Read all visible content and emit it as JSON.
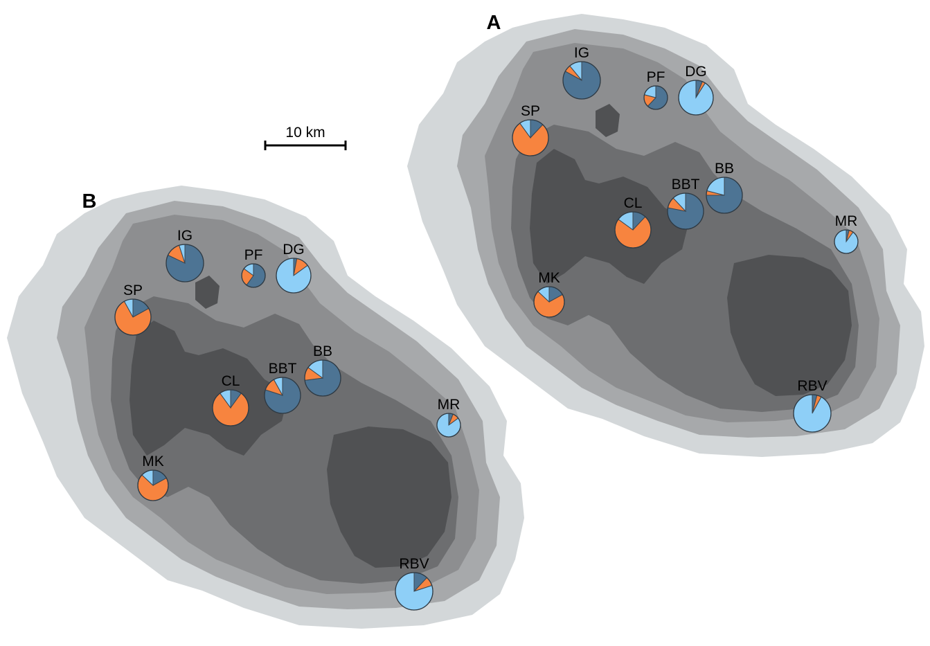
{
  "colors": {
    "outer": "#d3d7d9",
    "ring2": "#a7a9ab",
    "ring3": "#8d8e90",
    "ring4": "#6d6e70",
    "core": "#505153",
    "cat_dark": "#4d7494",
    "cat_orange": "#f7843f",
    "cat_light": "#8ecff7"
  },
  "scale_bar": {
    "label": "10 km"
  },
  "panels": [
    {
      "label": "A",
      "sites": [
        {
          "name": "IG",
          "fractions": [
            0.83,
            0.06,
            0.11
          ]
        },
        {
          "name": "PF",
          "fractions": [
            0.62,
            0.17,
            0.21
          ]
        },
        {
          "name": "DG",
          "fractions": [
            0.06,
            0.03,
            0.91
          ]
        },
        {
          "name": "SP",
          "fractions": [
            0.12,
            0.78,
            0.1
          ]
        },
        {
          "name": "BB",
          "fractions": [
            0.75,
            0.04,
            0.21
          ]
        },
        {
          "name": "BBT",
          "fractions": [
            0.78,
            0.1,
            0.12
          ]
        },
        {
          "name": "CL",
          "fractions": [
            0.12,
            0.73,
            0.15
          ]
        },
        {
          "name": "MR",
          "fractions": [
            0.04,
            0.06,
            0.9
          ]
        },
        {
          "name": "MK",
          "fractions": [
            0.17,
            0.7,
            0.13
          ]
        },
        {
          "name": "RBV",
          "fractions": [
            0.04,
            0.04,
            0.92
          ]
        }
      ]
    },
    {
      "label": "B",
      "sites": [
        {
          "name": "IG",
          "fractions": [
            0.82,
            0.13,
            0.05
          ]
        },
        {
          "name": "PF",
          "fractions": [
            0.6,
            0.25,
            0.15
          ]
        },
        {
          "name": "DG",
          "fractions": [
            0.03,
            0.12,
            0.85
          ]
        },
        {
          "name": "SP",
          "fractions": [
            0.17,
            0.75,
            0.08
          ]
        },
        {
          "name": "BB",
          "fractions": [
            0.73,
            0.12,
            0.15
          ]
        },
        {
          "name": "BBT",
          "fractions": [
            0.8,
            0.12,
            0.08
          ]
        },
        {
          "name": "CL",
          "fractions": [
            0.1,
            0.8,
            0.1
          ]
        },
        {
          "name": "MR",
          "fractions": [
            0.06,
            0.09,
            0.85
          ]
        },
        {
          "name": "MK",
          "fractions": [
            0.17,
            0.7,
            0.13
          ]
        },
        {
          "name": "RBV",
          "fractions": [
            0.12,
            0.08,
            0.8
          ]
        }
      ]
    }
  ]
}
